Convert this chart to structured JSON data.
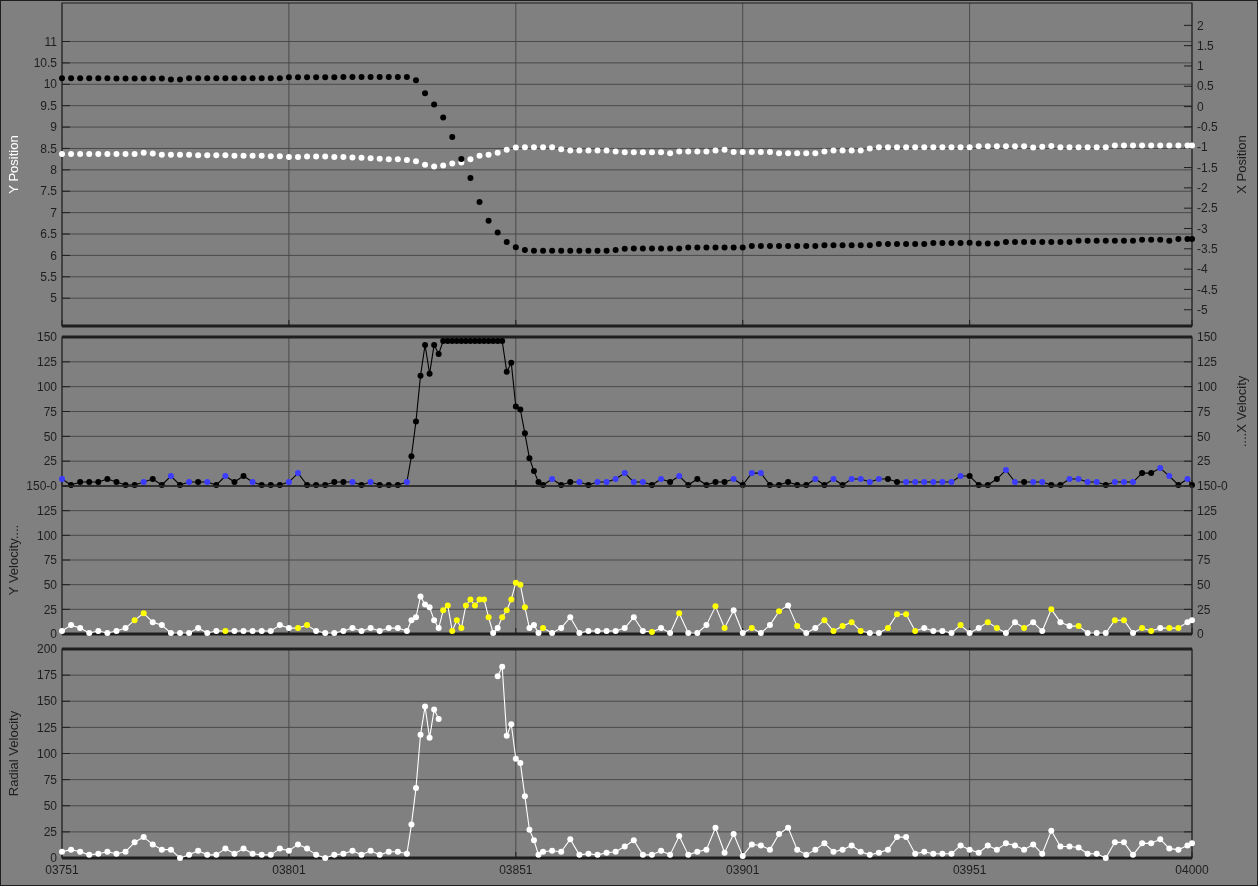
{
  "chart_data": [
    {
      "type": "scatter",
      "ylabel": "Y Position",
      "y2label": "X Position",
      "xlim": [
        3751,
        4000
      ],
      "xticks": [
        {
          "value": 3751,
          "label": null
        },
        {
          "value": 3801,
          "label": null
        },
        {
          "value": 3851,
          "label": null
        },
        {
          "value": 3901,
          "label": null
        },
        {
          "value": 3951,
          "label": null
        },
        {
          "value": 4000,
          "label": null
        }
      ],
      "ylim": [
        4.35,
        11.9
      ],
      "yticks": [
        5,
        5.5,
        6,
        6.5,
        7,
        7.5,
        8,
        8.5,
        9,
        9.5,
        10,
        10.5,
        11
      ],
      "y2lim": [
        -5.4,
        2.55
      ],
      "y2ticks": [
        -5,
        -4.5,
        -4,
        -3.5,
        -3,
        -2.5,
        -2,
        -1.5,
        -1,
        -0.5,
        0,
        0.5,
        1,
        1.5,
        2
      ],
      "grid": true,
      "marker": "circle",
      "tick_labels": "y",
      "x": [
        3751,
        3753,
        3755,
        3757,
        3759,
        3761,
        3763,
        3765,
        3767,
        3769,
        3771,
        3773,
        3775,
        3777,
        3779,
        3781,
        3783,
        3785,
        3787,
        3789,
        3791,
        3793,
        3795,
        3797,
        3799,
        3801,
        3803,
        3805,
        3807,
        3809,
        3811,
        3813,
        3815,
        3817,
        3819,
        3821,
        3823,
        3825,
        3827,
        3829,
        3831,
        3833,
        3835,
        3837,
        3839,
        3841,
        3843,
        3845,
        3847,
        3849,
        3851,
        3853,
        3855,
        3857,
        3859,
        3861,
        3863,
        3865,
        3867,
        3869,
        3871,
        3873,
        3875,
        3877,
        3879,
        3881,
        3883,
        3885,
        3887,
        3889,
        3891,
        3893,
        3895,
        3897,
        3899,
        3901,
        3903,
        3905,
        3907,
        3909,
        3911,
        3913,
        3915,
        3917,
        3919,
        3921,
        3923,
        3925,
        3927,
        3929,
        3931,
        3933,
        3935,
        3937,
        3939,
        3941,
        3943,
        3945,
        3947,
        3949,
        3951,
        3953,
        3955,
        3957,
        3959,
        3961,
        3963,
        3965,
        3967,
        3969,
        3971,
        3973,
        3975,
        3977,
        3979,
        3981,
        3983,
        3985,
        3987,
        3989,
        3991,
        3993,
        3995,
        3997,
        3999,
        4000
      ],
      "series": [
        {
          "color": "#ffffff",
          "values": [
            8.37,
            8.37,
            8.37,
            8.37,
            8.37,
            8.37,
            8.37,
            8.37,
            8.37,
            8.4,
            8.38,
            8.35,
            8.35,
            8.35,
            8.35,
            8.34,
            8.34,
            8.34,
            8.34,
            8.33,
            8.33,
            8.33,
            8.33,
            8.32,
            8.32,
            8.3,
            8.3,
            8.31,
            8.31,
            8.31,
            8.3,
            8.3,
            8.29,
            8.28,
            8.27,
            8.26,
            8.25,
            8.25,
            8.23,
            8.2,
            8.12,
            8.08,
            8.1,
            8.15,
            8.17,
            8.25,
            8.33,
            8.35,
            8.4,
            8.47,
            8.52,
            8.53,
            8.53,
            8.53,
            8.53,
            8.48,
            8.45,
            8.45,
            8.45,
            8.45,
            8.45,
            8.43,
            8.41,
            8.41,
            8.41,
            8.41,
            8.41,
            8.39,
            8.43,
            8.43,
            8.43,
            8.43,
            8.45,
            8.47,
            8.42,
            8.42,
            8.42,
            8.42,
            8.42,
            8.39,
            8.39,
            8.39,
            8.39,
            8.39,
            8.43,
            8.45,
            8.45,
            8.45,
            8.45,
            8.5,
            8.53,
            8.53,
            8.53,
            8.53,
            8.53,
            8.53,
            8.53,
            8.53,
            8.53,
            8.53,
            8.53,
            8.55,
            8.55,
            8.55,
            8.55,
            8.55,
            8.55,
            8.52,
            8.54,
            8.56,
            8.53,
            8.53,
            8.53,
            8.53,
            8.53,
            8.53,
            8.57,
            8.57,
            8.57,
            8.57,
            8.57,
            8.57,
            8.57,
            8.57,
            8.57,
            8.57
          ]
        },
        {
          "color": "#000000",
          "axis": "y2",
          "values": [
            0.7,
            0.7,
            0.7,
            0.7,
            0.7,
            0.7,
            0.69,
            0.69,
            0.69,
            0.69,
            0.69,
            0.69,
            0.67,
            0.67,
            0.7,
            0.7,
            0.7,
            0.7,
            0.7,
            0.7,
            0.7,
            0.7,
            0.7,
            0.7,
            0.7,
            0.72,
            0.72,
            0.72,
            0.72,
            0.72,
            0.72,
            0.73,
            0.73,
            0.73,
            0.73,
            0.73,
            0.73,
            0.73,
            0.73,
            0.65,
            0.33,
            0.05,
            -0.27,
            -0.75,
            -1.29,
            -1.76,
            -2.35,
            -2.81,
            -3.1,
            -3.33,
            -3.46,
            -3.53,
            -3.55,
            -3.55,
            -3.55,
            -3.55,
            -3.55,
            -3.55,
            -3.55,
            -3.55,
            -3.55,
            -3.53,
            -3.5,
            -3.49,
            -3.49,
            -3.49,
            -3.49,
            -3.49,
            -3.49,
            -3.47,
            -3.47,
            -3.47,
            -3.47,
            -3.47,
            -3.47,
            -3.47,
            -3.43,
            -3.43,
            -3.43,
            -3.43,
            -3.43,
            -3.43,
            -3.43,
            -3.43,
            -3.41,
            -3.41,
            -3.41,
            -3.41,
            -3.41,
            -3.41,
            -3.38,
            -3.38,
            -3.38,
            -3.38,
            -3.38,
            -3.38,
            -3.36,
            -3.36,
            -3.36,
            -3.36,
            -3.35,
            -3.37,
            -3.37,
            -3.37,
            -3.33,
            -3.33,
            -3.33,
            -3.33,
            -3.33,
            -3.33,
            -3.33,
            -3.33,
            -3.3,
            -3.3,
            -3.3,
            -3.3,
            -3.3,
            -3.3,
            -3.3,
            -3.28,
            -3.28,
            -3.28,
            -3.3,
            -3.26,
            -3.26,
            -3.26
          ]
        }
      ]
    },
    {
      "type": "line",
      "y2label": "....X Velocity",
      "xlim": [
        3751,
        4000
      ],
      "xticks": [
        {
          "value": 3751,
          "label": null
        },
        {
          "value": 3801,
          "label": null
        },
        {
          "value": 3851,
          "label": null
        },
        {
          "value": 3901,
          "label": null
        },
        {
          "value": 3951,
          "label": null
        },
        {
          "value": 4000,
          "label": null
        }
      ],
      "ylim": [
        0,
        150
      ],
      "yticks": [
        {
          "value": 0,
          "label": "150-0"
        },
        25,
        50,
        75,
        100,
        125,
        150
      ],
      "y2lim": [
        0,
        150
      ],
      "y2ticks": [
        {
          "value": 0,
          "label": "150-0"
        },
        25,
        50,
        75,
        100,
        125,
        150
      ],
      "grid": true,
      "marker": "circle",
      "tick_labels": "y",
      "x": [
        3751,
        3753,
        3755,
        3757,
        3759,
        3761,
        3763,
        3765,
        3767,
        3769,
        3771,
        3773,
        3775,
        3777,
        3779,
        3781,
        3783,
        3785,
        3787,
        3789,
        3791,
        3793,
        3795,
        3797,
        3799,
        3801,
        3803,
        3805,
        3807,
        3809,
        3811,
        3813,
        3815,
        3817,
        3819,
        3821,
        3823,
        3825,
        3827,
        3828,
        3829,
        3830,
        3831,
        3832,
        3833,
        3834,
        3835,
        3836,
        3837,
        3838,
        3839,
        3840,
        3841,
        3842,
        3843,
        3844,
        3845,
        3846,
        3847,
        3848,
        3849,
        3850,
        3851,
        3852,
        3853,
        3854,
        3855,
        3856,
        3857,
        3859,
        3861,
        3863,
        3865,
        3867,
        3869,
        3871,
        3873,
        3875,
        3877,
        3879,
        3881,
        3883,
        3885,
        3887,
        3889,
        3891,
        3893,
        3895,
        3897,
        3899,
        3901,
        3903,
        3905,
        3907,
        3909,
        3911,
        3913,
        3915,
        3917,
        3919,
        3921,
        3923,
        3925,
        3927,
        3929,
        3931,
        3933,
        3935,
        3937,
        3939,
        3941,
        3943,
        3945,
        3947,
        3949,
        3951,
        3953,
        3955,
        3957,
        3959,
        3961,
        3963,
        3965,
        3967,
        3969,
        3971,
        3973,
        3975,
        3977,
        3979,
        3981,
        3983,
        3985,
        3987,
        3989,
        3991,
        3993,
        3995,
        3997,
        3999,
        4000
      ],
      "series": [
        {
          "color": "#000000",
          "values": [
            7,
            1,
            4,
            4,
            4,
            7,
            4,
            1,
            1,
            4,
            7,
            1,
            10,
            1,
            4,
            4,
            4,
            1,
            10,
            4,
            10,
            4,
            1,
            1,
            1,
            4,
            13,
            1,
            1,
            1,
            4,
            4,
            4,
            1,
            4,
            1,
            1,
            1,
            4,
            30,
            65,
            111,
            142,
            113,
            142,
            133,
            146,
            146,
            146,
            146,
            146,
            146,
            146,
            146,
            146,
            146,
            146,
            146,
            146,
            146,
            115,
            124,
            80,
            77,
            53,
            28,
            15,
            4,
            1,
            7,
            1,
            4,
            4,
            1,
            4,
            4,
            7,
            13,
            4,
            4,
            1,
            7,
            4,
            10,
            1,
            7,
            1,
            4,
            4,
            7,
            1,
            13,
            13,
            1,
            1,
            4,
            1,
            1,
            7,
            1,
            7,
            1,
            7,
            7,
            4,
            7,
            7,
            4,
            4,
            4,
            4,
            4,
            4,
            4,
            10,
            10,
            1,
            1,
            7,
            16,
            4,
            4,
            4,
            4,
            1,
            1,
            7,
            7,
            4,
            4,
            1,
            4,
            4,
            4,
            13,
            13,
            18,
            10,
            1,
            7,
            1
          ],
          "colors": [
            "#3c3cff",
            "#000000",
            "#000000",
            "#000000",
            "#000000",
            "#000000",
            "#000000",
            "#000000",
            "#000000",
            "#3c3cff",
            "#000000",
            "#000000",
            "#3c3cff",
            "#000000",
            "#3c3cff",
            "#000000",
            "#3c3cff",
            "#000000",
            "#3c3cff",
            "#000000",
            "#000000",
            "#3c3cff",
            "#000000",
            "#000000",
            "#000000",
            "#3c3cff",
            "#3c3cff",
            "#000000",
            "#000000",
            "#000000",
            "#000000",
            "#000000",
            "#3c3cff",
            "#000000",
            "#3c3cff",
            "#000000",
            "#000000",
            "#000000",
            "#3c3cff",
            "#000000",
            "#000000",
            "#000000",
            "#000000",
            "#000000",
            "#000000",
            "#000000",
            "#000000",
            "#000000",
            "#000000",
            "#000000",
            "#000000",
            "#000000",
            "#000000",
            "#000000",
            "#000000",
            "#000000",
            "#000000",
            "#000000",
            "#000000",
            "#000000",
            "#000000",
            "#000000",
            "#000000",
            "#000000",
            "#000000",
            "#000000",
            "#000000",
            "#000000",
            "#000000",
            "#3c3cff",
            "#000000",
            "#000000",
            "#3c3cff",
            "#000000",
            "#3c3cff",
            "#3c3cff",
            "#3c3cff",
            "#3c3cff",
            "#3c3cff",
            "#3c3cff",
            "#000000",
            "#3c3cff",
            "#000000",
            "#3c3cff",
            "#000000",
            "#000000",
            "#000000",
            "#000000",
            "#000000",
            "#3c3cff",
            "#000000",
            "#3c3cff",
            "#3c3cff",
            "#000000",
            "#000000",
            "#000000",
            "#000000",
            "#000000",
            "#3c3cff",
            "#000000",
            "#3c3cff",
            "#000000",
            "#3c3cff",
            "#3c3cff",
            "#3c3cff",
            "#3c3cff",
            "#000000",
            "#000000",
            "#3c3cff",
            "#3c3cff",
            "#3c3cff",
            "#3c3cff",
            "#3c3cff",
            "#3c3cff",
            "#3c3cff",
            "#000000",
            "#000000",
            "#000000",
            "#000000",
            "#3c3cff",
            "#3c3cff",
            "#000000",
            "#3c3cff",
            "#3c3cff",
            "#000000",
            "#000000",
            "#3c3cff",
            "#3c3cff",
            "#3c3cff",
            "#3c3cff",
            "#000000",
            "#3c3cff",
            "#3c3cff",
            "#3c3cff",
            "#000000",
            "#000000",
            "#3c3cff",
            "#3c3cff",
            "#000000",
            "#3c3cff",
            "#000000"
          ]
        }
      ]
    },
    {
      "type": "line",
      "ylabel": "Y Velocity....",
      "xlim": [
        3751,
        4000
      ],
      "xticks": [
        {
          "value": 3751,
          "label": null
        },
        {
          "value": 3801,
          "label": null
        },
        {
          "value": 3851,
          "label": null
        },
        {
          "value": 3901,
          "label": null
        },
        {
          "value": 3951,
          "label": null
        },
        {
          "value": 4000,
          "label": null
        }
      ],
      "ylim": [
        0,
        150
      ],
      "yticks": [
        0,
        25,
        50,
        75,
        100,
        125,
        {
          "value": 150,
          "label": null
        }
      ],
      "y2lim": [
        0,
        150
      ],
      "y2ticks": [
        0,
        25,
        50,
        75,
        100,
        125,
        {
          "value": 150,
          "label": null
        }
      ],
      "grid": true,
      "marker": "circle",
      "tick_labels": "y",
      "x": [
        3751,
        3753,
        3755,
        3757,
        3759,
        3761,
        3763,
        3765,
        3767,
        3769,
        3771,
        3773,
        3775,
        3777,
        3779,
        3781,
        3783,
        3785,
        3787,
        3789,
        3791,
        3793,
        3795,
        3797,
        3799,
        3801,
        3803,
        3805,
        3807,
        3809,
        3811,
        3813,
        3815,
        3817,
        3819,
        3821,
        3823,
        3825,
        3827,
        3828,
        3829,
        3830,
        3831,
        3832,
        3833,
        3834,
        3835,
        3836,
        3837,
        3838,
        3839,
        3840,
        3841,
        3842,
        3843,
        3844,
        3845,
        3846,
        3847,
        3848,
        3849,
        3850,
        3851,
        3852,
        3853,
        3854,
        3855,
        3856,
        3857,
        3859,
        3861,
        3863,
        3865,
        3867,
        3869,
        3871,
        3873,
        3875,
        3877,
        3879,
        3881,
        3883,
        3885,
        3887,
        3889,
        3891,
        3893,
        3895,
        3897,
        3899,
        3901,
        3903,
        3905,
        3907,
        3909,
        3911,
        3913,
        3915,
        3917,
        3919,
        3921,
        3923,
        3925,
        3927,
        3929,
        3931,
        3933,
        3935,
        3937,
        3939,
        3941,
        3943,
        3945,
        3947,
        3949,
        3951,
        3953,
        3955,
        3957,
        3959,
        3961,
        3963,
        3965,
        3967,
        3969,
        3971,
        3973,
        3975,
        3977,
        3979,
        3981,
        3983,
        3985,
        3987,
        3989,
        3991,
        3993,
        3995,
        3997,
        3999,
        4000
      ],
      "series": [
        {
          "color": "#ffffff",
          "values": [
            3,
            9,
            6,
            1,
            3,
            1,
            3,
            6,
            14,
            21,
            12,
            9,
            1,
            1,
            1,
            6,
            1,
            3,
            3,
            3,
            3,
            3,
            3,
            3,
            9,
            6,
            6,
            9,
            3,
            1,
            1,
            3,
            6,
            3,
            6,
            3,
            6,
            6,
            3,
            14,
            17,
            38,
            30,
            27,
            14,
            6,
            24,
            29,
            3,
            14,
            6,
            29,
            35,
            29,
            35,
            35,
            17,
            1,
            6,
            17,
            24,
            35,
            52,
            50,
            27,
            6,
            9,
            1,
            6,
            1,
            6,
            17,
            1,
            3,
            3,
            3,
            3,
            6,
            17,
            3,
            2,
            6,
            1,
            21,
            1,
            1,
            9,
            28,
            6,
            24,
            1,
            6,
            1,
            9,
            23,
            29,
            8,
            1,
            6,
            14,
            3,
            8,
            12,
            3,
            1,
            1,
            6,
            20,
            20,
            3,
            6,
            3,
            3,
            1,
            9,
            1,
            6,
            12,
            6,
            1,
            12,
            6,
            12,
            3,
            25,
            12,
            8,
            8,
            1,
            1,
            1,
            14,
            14,
            1,
            6,
            3,
            6,
            6,
            6,
            12,
            14
          ],
          "colors": [
            "#ffffff",
            "#ffffff",
            "#ffffff",
            "#ffffff",
            "#ffffff",
            "#ffffff",
            "#ffffff",
            "#ffffff",
            "#ffff00",
            "#ffff00",
            "#ffffff",
            "#ffffff",
            "#ffffff",
            "#ffffff",
            "#ffffff",
            "#ffffff",
            "#ffffff",
            "#ffffff",
            "#ffff00",
            "#ffffff",
            "#ffffff",
            "#ffffff",
            "#ffffff",
            "#ffffff",
            "#ffffff",
            "#ffffff",
            "#ffff00",
            "#ffff00",
            "#ffffff",
            "#ffffff",
            "#ffffff",
            "#ffffff",
            "#ffffff",
            "#ffffff",
            "#ffffff",
            "#ffffff",
            "#ffffff",
            "#ffffff",
            "#ffffff",
            "#ffffff",
            "#ffffff",
            "#ffffff",
            "#ffffff",
            "#ffffff",
            "#ffffff",
            "#ffffff",
            "#ffff00",
            "#ffff00",
            "#ffff00",
            "#ffff00",
            "#ffff00",
            "#ffff00",
            "#ffff00",
            "#ffff00",
            "#ffff00",
            "#ffff00",
            "#ffff00",
            "#ffffff",
            "#ffffff",
            "#ffff00",
            "#ffff00",
            "#ffff00",
            "#ffff00",
            "#ffff00",
            "#ffff00",
            "#ffffff",
            "#ffffff",
            "#ffffff",
            "#ffff00",
            "#ffffff",
            "#ffffff",
            "#ffffff",
            "#ffffff",
            "#ffffff",
            "#ffffff",
            "#ffffff",
            "#ffffff",
            "#ffffff",
            "#ffffff",
            "#ffffff",
            "#ffff00",
            "#ffffff",
            "#ffffff",
            "#ffff00",
            "#ffffff",
            "#ffffff",
            "#ffffff",
            "#ffff00",
            "#ffff00",
            "#ffffff",
            "#ffffff",
            "#ffff00",
            "#ffffff",
            "#ffffff",
            "#ffff00",
            "#ffffff",
            "#ffff00",
            "#ffffff",
            "#ffffff",
            "#ffff00",
            "#ffff00",
            "#ffff00",
            "#ffff00",
            "#ffff00",
            "#ffffff",
            "#ffffff",
            "#ffff00",
            "#ffff00",
            "#ffff00",
            "#ffff00",
            "#ffffff",
            "#ffffff",
            "#ffffff",
            "#ffffff",
            "#ffff00",
            "#ffffff",
            "#ffffff",
            "#ffff00",
            "#ffff00",
            "#ffffff",
            "#ffffff",
            "#ffff00",
            "#ffffff",
            "#ffffff",
            "#ffff00",
            "#ffffff",
            "#ffffff",
            "#ffff00",
            "#ffffff",
            "#ffffff",
            "#ffffff",
            "#ffff00",
            "#ffff00",
            "#ffffff",
            "#ffff00",
            "#ffff00",
            "#ffffff",
            "#ffff00",
            "#ffff00",
            "#ffffff",
            "#ffffff"
          ]
        }
      ]
    },
    {
      "type": "line",
      "ylabel": "Radial Velocity",
      "xlim": [
        3751,
        4000
      ],
      "xticks": [
        {
          "value": 3751,
          "label": "03751"
        },
        {
          "value": 3801,
          "label": "03801"
        },
        {
          "value": 3851,
          "label": "03851"
        },
        {
          "value": 3901,
          "label": "03901"
        },
        {
          "value": 3951,
          "label": "03951"
        },
        {
          "value": 4000,
          "label": "04000"
        }
      ],
      "ylim": [
        0,
        200
      ],
      "yticks": [
        0,
        25,
        50,
        75,
        100,
        125,
        150,
        175,
        200
      ],
      "grid": true,
      "marker": "circle",
      "series": [
        {
          "color": "#ffffff",
          "x": [
            3751,
            3753,
            3755,
            3757,
            3759,
            3761,
            3763,
            3765,
            3767,
            3769,
            3771,
            3773,
            3775,
            3777,
            3779,
            3781,
            3783,
            3785,
            3787,
            3789,
            3791,
            3793,
            3795,
            3797,
            3799,
            3801,
            3803,
            3805,
            3807,
            3809,
            3811,
            3813,
            3815,
            3817,
            3819,
            3821,
            3823,
            3825,
            3827,
            3828,
            3829,
            3830,
            3831,
            3832,
            3833,
            3834
          ],
          "values": [
            6,
            8,
            6,
            3,
            4,
            6,
            4,
            6,
            15,
            20,
            13,
            8,
            8,
            0,
            3,
            7,
            3,
            3,
            9,
            4,
            9,
            4,
            3,
            3,
            9,
            7,
            13,
            9,
            3,
            0,
            3,
            4,
            7,
            3,
            7,
            3,
            6,
            6,
            4,
            32,
            67,
            118,
            145,
            115,
            142,
            133
          ]
        },
        {
          "color": "#ffffff",
          "x": [
            3847,
            3848,
            3849,
            3850,
            3851,
            3852,
            3853,
            3854,
            3855,
            3856,
            3857,
            3859,
            3861,
            3863,
            3865,
            3867,
            3869,
            3871,
            3873,
            3875,
            3877,
            3879,
            3881,
            3883,
            3885,
            3887,
            3889,
            3891,
            3893,
            3895,
            3897,
            3899,
            3901,
            3903,
            3905,
            3907,
            3909,
            3911,
            3913,
            3915,
            3917,
            3919,
            3921,
            3923,
            3925,
            3927,
            3929,
            3931,
            3933,
            3935,
            3937,
            3939,
            3941,
            3943,
            3945,
            3947,
            3949,
            3951,
            3953,
            3955,
            3957,
            3959,
            3961,
            3963,
            3965,
            3967,
            3969,
            3971,
            3973,
            3975,
            3977,
            3979,
            3981,
            3983,
            3985,
            3987,
            3989,
            3991,
            3993,
            3995,
            3997,
            3999,
            4000
          ],
          "values": [
            174,
            183,
            117,
            128,
            95,
            91,
            59,
            27,
            17,
            3,
            6,
            7,
            6,
            18,
            3,
            4,
            3,
            5,
            6,
            11,
            17,
            3,
            3,
            7,
            3,
            21,
            3,
            6,
            8,
            29,
            5,
            23,
            2,
            13,
            12,
            8,
            23,
            29,
            8,
            3,
            8,
            14,
            6,
            8,
            12,
            6,
            3,
            5,
            8,
            20,
            20,
            4,
            6,
            4,
            4,
            4,
            12,
            8,
            5,
            12,
            8,
            14,
            12,
            8,
            13,
            4,
            26,
            11,
            11,
            10,
            4,
            4,
            0,
            15,
            15,
            3,
            14,
            14,
            18,
            9,
            8,
            12,
            14
          ]
        }
      ]
    }
  ]
}
